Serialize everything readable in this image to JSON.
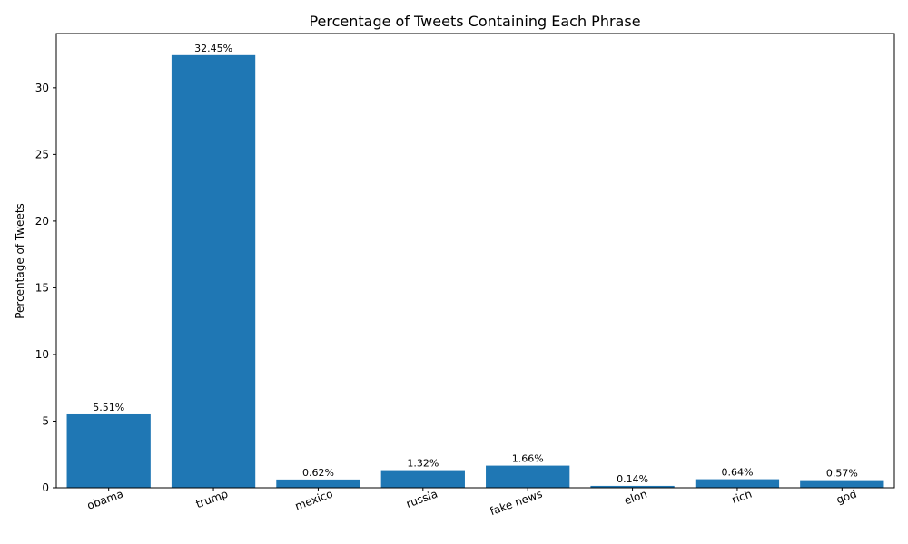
{
  "chart_data": {
    "type": "bar",
    "title": "Percentage of Tweets Containing Each Phrase",
    "xlabel": "",
    "ylabel": "Percentage of Tweets",
    "categories": [
      "obama",
      "trump",
      "mexico",
      "russia",
      "fake news",
      "elon",
      "rich",
      "god"
    ],
    "values": [
      5.51,
      32.45,
      0.62,
      1.32,
      1.66,
      0.14,
      0.64,
      0.57
    ],
    "data_labels": [
      "5.51%",
      "32.45%",
      "0.62%",
      "1.32%",
      "1.66%",
      "0.14%",
      "0.64%",
      "0.57%"
    ],
    "ylim": [
      0,
      34.07
    ],
    "yticks": [
      0,
      5,
      10,
      15,
      20,
      25,
      30
    ],
    "bar_color": "#1f77b4",
    "grid": false,
    "legend": "none"
  }
}
